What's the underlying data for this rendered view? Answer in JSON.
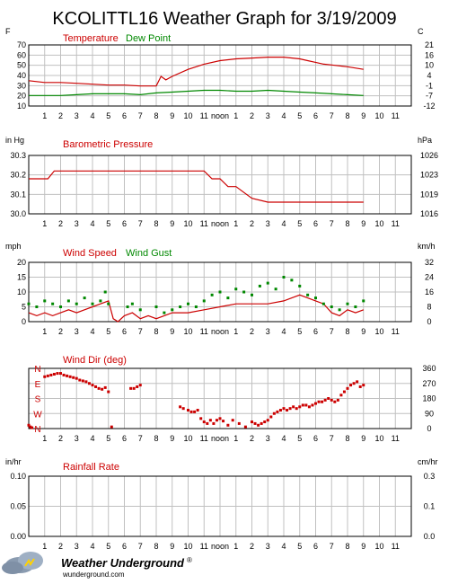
{
  "title": "KCOLITTL16 Weather Graph for 3/19/2009",
  "hour_ticks": [
    "1",
    "2",
    "3",
    "4",
    "5",
    "6",
    "7",
    "8",
    "9",
    "10",
    "11",
    "noon",
    "1",
    "2",
    "3",
    "4",
    "5",
    "6",
    "7",
    "8",
    "9",
    "10",
    "11"
  ],
  "footer": {
    "brand": "Weather Underground",
    "trademark": "®",
    "url": "wunderground.com"
  },
  "colors": {
    "red": "#cc0000",
    "green": "#008800",
    "axis": "#000000",
    "grid": "#c0c0c0"
  },
  "chart_data": [
    {
      "type": "line",
      "unit_left": "F",
      "unit_right": "C",
      "series": [
        {
          "name": "Temperature",
          "color": "#cc0000",
          "x": [
            0,
            1,
            2,
            3,
            4,
            5,
            6,
            7,
            7.5,
            8,
            8.3,
            8.6,
            9,
            10,
            11,
            12,
            13,
            14,
            15,
            16,
            17,
            17.5,
            18,
            18.5,
            19,
            20,
            21
          ],
          "values": [
            39,
            37,
            37,
            36,
            35,
            34,
            34,
            33,
            33,
            33,
            44,
            40,
            44,
            52,
            58,
            62,
            64,
            65,
            66,
            66,
            64,
            62,
            60,
            58,
            57,
            55,
            52
          ]
        },
        {
          "name": "Dew Point",
          "color": "#008800",
          "x": [
            0,
            1,
            2,
            3,
            4,
            5,
            6,
            7,
            8,
            9,
            10,
            11,
            12,
            13,
            14,
            15,
            16,
            17,
            18,
            19,
            20,
            21
          ],
          "values": [
            22,
            22,
            22,
            23,
            24,
            24,
            24,
            23,
            25,
            26,
            27,
            28,
            28,
            27,
            27,
            28,
            27,
            26,
            25,
            24,
            23,
            22
          ]
        }
      ],
      "ylim": [
        10,
        80
      ],
      "yticks_left": [
        10,
        20,
        30,
        40,
        50,
        60,
        70
      ],
      "yticks_right": [
        "-12",
        "-7",
        "-1",
        "4",
        "10",
        "16",
        "21"
      ]
    },
    {
      "type": "line",
      "unit_left": "in Hg",
      "unit_right": "hPa",
      "series": [
        {
          "name": "Barometric Pressure",
          "color": "#cc0000",
          "x": [
            0,
            1.2,
            1.6,
            2,
            11,
            11.5,
            12,
            12.5,
            13,
            13.5,
            14,
            15,
            21
          ],
          "values": [
            30.18,
            30.18,
            30.22,
            30.22,
            30.22,
            30.18,
            30.18,
            30.14,
            30.14,
            30.11,
            30.08,
            30.06,
            30.06
          ]
        }
      ],
      "ylim": [
        30.0,
        30.3
      ],
      "yticks_left": [
        "30.0",
        "30.1",
        "30.2",
        "30.3"
      ],
      "yticks_right": [
        "1016",
        "1019",
        "1023",
        "1026"
      ]
    },
    {
      "type": "line",
      "unit_left": "mph",
      "unit_right": "km/h",
      "series": [
        {
          "name": "Wind Speed",
          "color": "#cc0000",
          "x": [
            0,
            0.5,
            1,
            1.5,
            2,
            2.5,
            3,
            3.5,
            4,
            4.5,
            5,
            5.3,
            5.6,
            6,
            6.5,
            7,
            7.5,
            8,
            8.5,
            9,
            10,
            11,
            12,
            13,
            14,
            15,
            16,
            16.5,
            17,
            17.5,
            18,
            18.5,
            19,
            19.5,
            20,
            20.5,
            21
          ],
          "values": [
            3,
            2,
            3,
            2,
            3,
            4,
            3,
            4,
            5,
            6,
            7,
            1,
            0,
            2,
            3,
            1,
            2,
            1,
            2,
            3,
            3,
            4,
            5,
            6,
            6,
            6,
            7,
            8,
            9,
            8,
            7,
            6,
            3,
            2,
            4,
            3,
            4
          ]
        },
        {
          "name": "Wind Gust",
          "color": "#008800",
          "x": [
            0,
            0.5,
            1,
            1.5,
            2,
            2.5,
            3,
            3.5,
            4,
            4.5,
            4.8,
            5,
            6.2,
            6.5,
            7,
            8,
            8.5,
            9,
            9.5,
            10,
            10.5,
            11,
            11.5,
            12,
            12.5,
            13,
            13.5,
            14,
            14.5,
            15,
            15.5,
            16,
            16.5,
            17,
            17.5,
            18,
            18.5,
            19,
            19.5,
            20,
            20.5,
            21
          ],
          "values": [
            6,
            5,
            7,
            6,
            5,
            7,
            6,
            8,
            6,
            7,
            10,
            6,
            5,
            6,
            4,
            5,
            3,
            4,
            5,
            6,
            5,
            7,
            9,
            10,
            8,
            11,
            10,
            9,
            12,
            13,
            11,
            15,
            14,
            12,
            9,
            8,
            6,
            5,
            4,
            6,
            5,
            7
          ]
        }
      ],
      "ylim": [
        0,
        20
      ],
      "yticks_left": [
        0,
        5,
        10,
        15,
        20
      ],
      "yticks_right": [
        "0",
        "8",
        "16",
        "24",
        "32"
      ]
    },
    {
      "type": "scatter",
      "unit_left": "",
      "unit_right": "",
      "series": [
        {
          "name": "Wind Dir (deg)",
          "color": "#cc0000",
          "x": [
            0,
            0.1,
            0.2,
            1,
            1.2,
            1.4,
            1.6,
            1.8,
            2,
            2.2,
            2.4,
            2.6,
            2.8,
            3,
            3.2,
            3.4,
            3.6,
            3.8,
            4,
            4.2,
            4.4,
            4.6,
            4.8,
            5,
            5.2,
            6.4,
            6.6,
            6.8,
            7,
            9.5,
            9.7,
            10,
            10.2,
            10.4,
            10.6,
            10.8,
            11,
            11.2,
            11.4,
            11.6,
            11.8,
            12,
            12.2,
            12.5,
            12.8,
            13.2,
            13.6,
            14,
            14.2,
            14.4,
            14.6,
            14.8,
            15,
            15.2,
            15.4,
            15.6,
            15.8,
            16,
            16.2,
            16.4,
            16.6,
            16.8,
            17,
            17.2,
            17.4,
            17.6,
            17.8,
            18,
            18.2,
            18.4,
            18.6,
            18.8,
            19,
            19.2,
            19.4,
            19.6,
            19.8,
            20,
            20.2,
            20.4,
            20.6,
            20.8,
            21
          ],
          "values": [
            20,
            10,
            5,
            310,
            315,
            320,
            325,
            330,
            330,
            320,
            315,
            310,
            305,
            300,
            290,
            285,
            280,
            270,
            260,
            250,
            240,
            235,
            245,
            220,
            10,
            240,
            240,
            250,
            260,
            130,
            120,
            110,
            100,
            100,
            110,
            60,
            40,
            30,
            50,
            30,
            50,
            60,
            45,
            20,
            50,
            30,
            10,
            40,
            30,
            20,
            30,
            40,
            50,
            70,
            90,
            100,
            110,
            120,
            110,
            120,
            130,
            120,
            130,
            140,
            140,
            130,
            140,
            150,
            160,
            160,
            170,
            180,
            170,
            160,
            170,
            200,
            220,
            240,
            260,
            270,
            280,
            250,
            260
          ],
          "marker": "square"
        }
      ],
      "ylim": [
        0,
        360
      ],
      "yticks_left": [],
      "yticks_right": [
        "0",
        "90",
        "180",
        "270",
        "360"
      ],
      "compass_labels": [
        "N",
        "W",
        "S",
        "E",
        "N"
      ]
    },
    {
      "type": "line",
      "unit_left": "in/hr",
      "unit_right": "cm/hr",
      "series": [
        {
          "name": "Rainfall Rate",
          "color": "#cc0000",
          "x": [],
          "values": []
        }
      ],
      "ylim": [
        0,
        0.1
      ],
      "yticks_left": [
        "0.00",
        "0.05",
        "0.10"
      ],
      "yticks_right": [
        "0.0",
        "0.1",
        "0.3"
      ]
    }
  ]
}
